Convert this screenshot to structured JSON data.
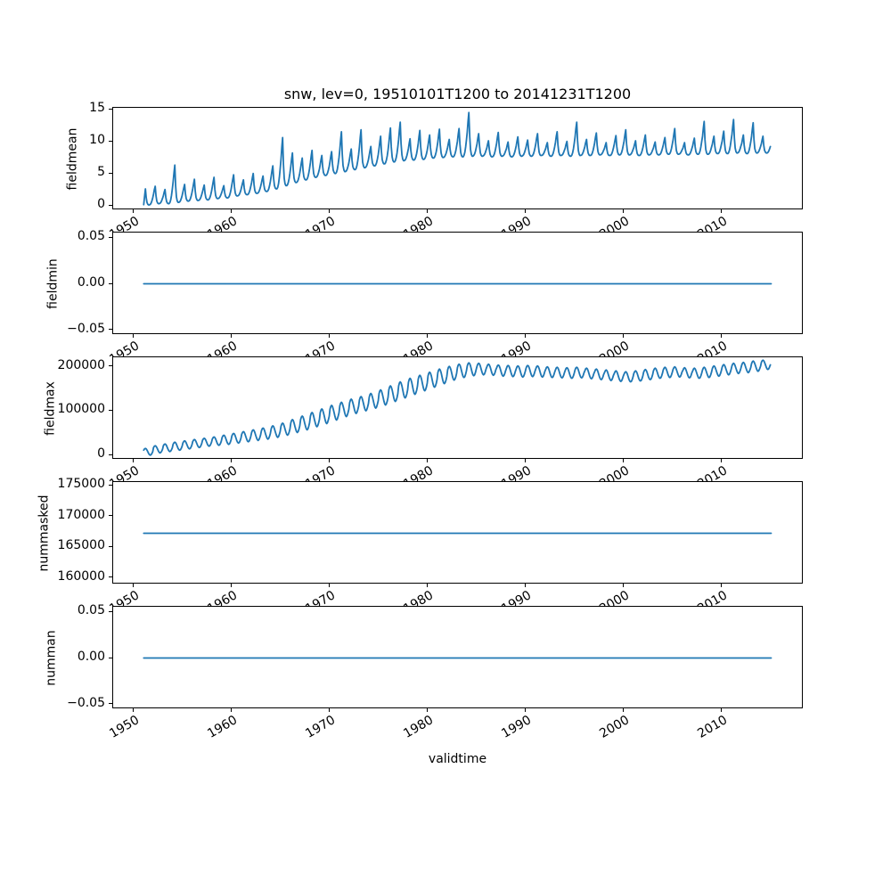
{
  "title": "snw, lev=0, 19510101T1200 to 20141231T1200",
  "accent_color": "#1f77b4",
  "x_axis": {
    "label": "validtime",
    "xlim": [
      1947.88,
      2018.32
    ],
    "tick_values": [
      1950,
      1960,
      1970,
      1980,
      1990,
      2000,
      2010
    ],
    "tick_labels": [
      "1950",
      "1960",
      "1970",
      "1980",
      "1990",
      "2000",
      "2010"
    ]
  },
  "chart_data": [
    {
      "type": "line",
      "name": "fieldmean",
      "ylabel": "fieldmean",
      "ylim": [
        -0.73,
        15.23
      ],
      "ytick_values": [
        0,
        5,
        10,
        15
      ],
      "ytick_labels": [
        "0",
        "5",
        "10",
        "15"
      ],
      "series": {
        "kind": "seasonal-spiky",
        "description": "monthly mean snow field value; sharp late-winter peaks, summer troughs, rising until ~1980 then plateau",
        "start_year": 1951,
        "end_year": 2014,
        "peaks": [
          2.6,
          3.0,
          2.5,
          6.3,
          3.3,
          4.1,
          3.2,
          4.4,
          3.1,
          4.8,
          4.0,
          5.0,
          4.6,
          6.2,
          10.6,
          8.2,
          7.4,
          8.6,
          7.8,
          8.4,
          11.5,
          8.8,
          11.8,
          9.2,
          10.8,
          12.1,
          13.0,
          10.4,
          11.7,
          11.0,
          11.9,
          10.3,
          12.0,
          14.5,
          11.2,
          10.1,
          11.4,
          9.9,
          10.7,
          10.2,
          11.2,
          9.8,
          11.5,
          10.0,
          13.0,
          10.3,
          11.3,
          9.8,
          10.9,
          11.8,
          10.1,
          11.0,
          9.9,
          10.6,
          12.0,
          9.8,
          10.5,
          13.1,
          10.8,
          11.6,
          13.4,
          11.0,
          12.9,
          10.8
        ],
        "troughs": [
          0.1,
          0.3,
          0.3,
          0.5,
          0.7,
          0.8,
          0.9,
          1.1,
          1.2,
          1.5,
          1.7,
          1.9,
          2.2,
          2.6,
          3.1,
          3.6,
          4.0,
          4.4,
          4.7,
          5.0,
          5.3,
          5.6,
          5.9,
          6.2,
          6.5,
          6.8,
          7.0,
          7.1,
          7.2,
          7.4,
          7.5,
          7.6,
          7.6,
          7.7,
          7.7,
          7.6,
          7.7,
          7.6,
          7.7,
          7.7,
          7.8,
          7.7,
          7.8,
          7.7,
          7.8,
          7.8,
          7.9,
          7.8,
          7.9,
          7.9,
          7.8,
          7.9,
          7.9,
          8.0,
          8.0,
          7.9,
          8.0,
          8.0,
          8.1,
          8.1,
          8.2,
          8.1,
          8.2,
          8.2
        ]
      }
    },
    {
      "type": "line",
      "name": "fieldmin",
      "ylabel": "fieldmin",
      "ylim": [
        -0.0557,
        0.0557
      ],
      "ytick_values": [
        -0.05,
        0,
        0.05
      ],
      "ytick_labels": [
        "−0.05",
        "0.00",
        "0.05"
      ],
      "series": {
        "kind": "constant",
        "value": 0,
        "description": "field minimum is 0 for the whole period"
      }
    },
    {
      "type": "line",
      "name": "fieldmax",
      "ylabel": "fieldmax",
      "ylim": [
        -10500,
        220500
      ],
      "ytick_values": [
        0,
        100000,
        200000
      ],
      "ytick_labels": [
        "0",
        "100000",
        "200000"
      ],
      "series": {
        "kind": "seasonal-smooth",
        "description": "monthly maximum field value; annual oscillation rising from ~0 (1951) to ~200000 by early 1980s, plateau with dip near 2000, ending ~210000",
        "start_year": 1951,
        "end_year": 2014,
        "peaks": [
          15000,
          21000,
          25000,
          29000,
          32000,
          35000,
          38000,
          41000,
          45000,
          49000,
          53000,
          57000,
          61000,
          66000,
          72000,
          80000,
          88000,
          96000,
          104000,
          112000,
          119000,
          126000,
          132000,
          139000,
          147000,
          156000,
          165000,
          173000,
          180000,
          187000,
          194000,
          200000,
          205000,
          208000,
          207000,
          205000,
          203000,
          202000,
          201000,
          202000,
          201000,
          199000,
          198000,
          197000,
          198000,
          196000,
          194000,
          192000,
          190000,
          188000,
          190000,
          193000,
          196000,
          198000,
          199000,
          197000,
          196000,
          198000,
          201000,
          204000,
          207000,
          209000,
          212000,
          214000
        ],
        "troughs": [
          0,
          5000,
          8000,
          11000,
          14000,
          17000,
          20000,
          22000,
          24000,
          27000,
          30000,
          33000,
          36000,
          40000,
          45000,
          51000,
          57000,
          64000,
          71000,
          79000,
          87000,
          94000,
          100000,
          106000,
          113000,
          121000,
          129000,
          137000,
          145000,
          153000,
          161000,
          169000,
          175000,
          179000,
          181000,
          180000,
          178000,
          177000,
          176000,
          177000,
          176000,
          175000,
          174000,
          173000,
          174000,
          172000,
          170000,
          168000,
          166000,
          165000,
          167000,
          170000,
          173000,
          175000,
          176000,
          174000,
          173000,
          175000,
          178000,
          181000,
          184000,
          186000,
          189000,
          193000
        ]
      }
    },
    {
      "type": "line",
      "name": "nummasked",
      "ylabel": "nummasked",
      "ylim": [
        158840,
        175560
      ],
      "ytick_values": [
        160000,
        165000,
        170000,
        175000
      ],
      "ytick_labels": [
        "160000",
        "165000",
        "170000",
        "175000"
      ],
      "series": {
        "kind": "constant",
        "value": 167200,
        "description": "number of masked points, constant ~167200"
      }
    },
    {
      "type": "line",
      "name": "numman",
      "ylabel": "numman",
      "ylim": [
        -0.0557,
        0.0557
      ],
      "ytick_values": [
        -0.05,
        0,
        0.05
      ],
      "ytick_labels": [
        "−0.05",
        "0.00",
        "0.05"
      ],
      "series": {
        "kind": "constant",
        "value": 0,
        "description": "number of NaN points is 0 for the whole period"
      }
    }
  ]
}
